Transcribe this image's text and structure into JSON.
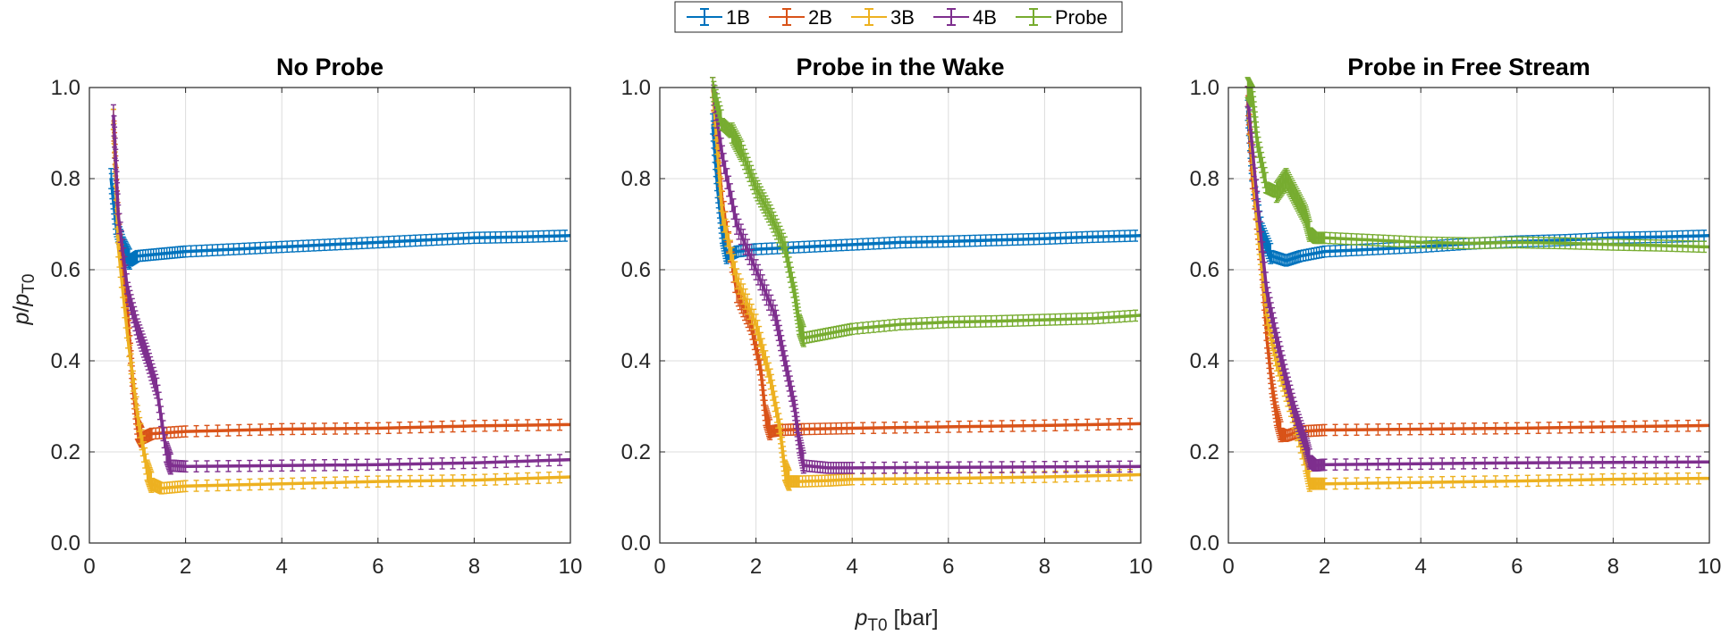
{
  "figure": {
    "legend": {
      "placement": "top-center",
      "entries": [
        {
          "label": "1B",
          "color": "#0072BD"
        },
        {
          "label": "2B",
          "color": "#D95319"
        },
        {
          "label": "3B",
          "color": "#EDB120"
        },
        {
          "label": "4B",
          "color": "#7E2F8E"
        },
        {
          "label": "Probe",
          "color": "#77AC30"
        }
      ]
    },
    "shared_xlabel_var": "p",
    "shared_xlabel_sub": "T0",
    "shared_xlabel_unit": " [bar]",
    "shared_ylabel_var_p": "p",
    "shared_ylabel_slash": "/",
    "shared_ylabel_var_p2": "p",
    "shared_ylabel_sub": "T0"
  },
  "chart_data": [
    {
      "type": "line",
      "title": "No Probe",
      "xlim": [
        0,
        10
      ],
      "ylim": [
        0,
        1
      ],
      "xticks": [
        "0",
        "2",
        "4",
        "6",
        "8",
        "10"
      ],
      "yticks": [
        "0.0",
        "0.2",
        "0.4",
        "0.6",
        "0.8",
        "1.0"
      ],
      "grid": true,
      "error_bars": true,
      "series": [
        {
          "name": "1B",
          "x": [
            0.45,
            0.55,
            0.7,
            0.85,
            1.0,
            1.5,
            2.0,
            3.0,
            4.0,
            5.0,
            6.0,
            7.0,
            8.0,
            9.0,
            10.0
          ],
          "y": [
            0.8,
            0.7,
            0.65,
            0.62,
            0.63,
            0.635,
            0.64,
            0.645,
            0.65,
            0.655,
            0.66,
            0.665,
            0.67,
            0.672,
            0.675
          ]
        },
        {
          "name": "2B",
          "x": [
            0.5,
            0.6,
            0.8,
            0.9,
            1.0,
            1.1,
            1.3,
            2.0,
            4.0,
            6.0,
            8.0,
            10.0
          ],
          "y": [
            0.93,
            0.7,
            0.5,
            0.35,
            0.25,
            0.23,
            0.24,
            0.245,
            0.25,
            0.252,
            0.257,
            0.26
          ]
        },
        {
          "name": "3B",
          "x": [
            0.5,
            0.6,
            0.8,
            1.0,
            1.2,
            1.3,
            1.5,
            2.0,
            4.0,
            6.0,
            8.0,
            10.0
          ],
          "y": [
            0.93,
            0.65,
            0.45,
            0.28,
            0.16,
            0.13,
            0.12,
            0.125,
            0.13,
            0.135,
            0.138,
            0.145
          ]
        },
        {
          "name": "4B",
          "x": [
            0.5,
            0.6,
            0.8,
            1.0,
            1.2,
            1.4,
            1.6,
            1.7,
            2.0,
            4.0,
            6.0,
            8.0,
            10.0
          ],
          "y": [
            0.94,
            0.72,
            0.55,
            0.47,
            0.41,
            0.34,
            0.2,
            0.17,
            0.168,
            0.17,
            0.172,
            0.176,
            0.183
          ]
        }
      ]
    },
    {
      "type": "line",
      "title": "Probe in the Wake",
      "xlim": [
        0,
        10
      ],
      "ylim": [
        0,
        1
      ],
      "xticks": [
        "0",
        "2",
        "4",
        "6",
        "8",
        "10"
      ],
      "yticks": [
        "0.0",
        "0.2",
        "0.4",
        "0.6",
        "0.8",
        "1.0"
      ],
      "grid": true,
      "error_bars": true,
      "series": [
        {
          "name": "1B",
          "x": [
            1.1,
            1.2,
            1.3,
            1.4,
            1.6,
            2.0,
            3.0,
            4.0,
            5.0,
            6.0,
            7.0,
            8.0,
            9.0,
            10.0
          ],
          "y": [
            0.92,
            0.78,
            0.68,
            0.63,
            0.64,
            0.645,
            0.65,
            0.655,
            0.66,
            0.662,
            0.665,
            0.668,
            0.672,
            0.675
          ]
        },
        {
          "name": "2B",
          "x": [
            1.1,
            1.3,
            1.6,
            1.9,
            2.1,
            2.2,
            2.3,
            2.5,
            3.0,
            4.0,
            6.0,
            8.0,
            10.0
          ],
          "y": [
            1.0,
            0.75,
            0.55,
            0.48,
            0.38,
            0.28,
            0.245,
            0.248,
            0.25,
            0.252,
            0.255,
            0.258,
            0.262
          ]
        },
        {
          "name": "3B",
          "x": [
            1.1,
            1.3,
            1.6,
            2.0,
            2.3,
            2.5,
            2.6,
            2.7,
            2.9,
            3.5,
            4.0,
            6.0,
            8.0,
            10.0
          ],
          "y": [
            1.0,
            0.72,
            0.58,
            0.48,
            0.36,
            0.25,
            0.16,
            0.135,
            0.135,
            0.137,
            0.14,
            0.142,
            0.145,
            0.15
          ]
        },
        {
          "name": "4B",
          "x": [
            1.1,
            1.3,
            1.6,
            2.0,
            2.4,
            2.6,
            2.8,
            2.9,
            3.0,
            3.5,
            4.0,
            6.0,
            8.0,
            10.0
          ],
          "y": [
            1.0,
            0.85,
            0.7,
            0.6,
            0.5,
            0.4,
            0.3,
            0.22,
            0.17,
            0.165,
            0.165,
            0.166,
            0.167,
            0.168
          ]
        },
        {
          "name": "Probe",
          "x": [
            1.1,
            1.3,
            1.5,
            1.7,
            2.0,
            2.3,
            2.6,
            2.8,
            2.9,
            3.0,
            3.5,
            4.0,
            5.0,
            6.0,
            7.0,
            8.0,
            9.0,
            10.0
          ],
          "y": [
            1.0,
            0.92,
            0.9,
            0.86,
            0.78,
            0.72,
            0.65,
            0.55,
            0.48,
            0.45,
            0.46,
            0.47,
            0.48,
            0.485,
            0.487,
            0.49,
            0.493,
            0.5
          ]
        }
      ]
    },
    {
      "type": "line",
      "title": "Probe in Free Stream",
      "xlim": [
        0,
        10
      ],
      "ylim": [
        0,
        1
      ],
      "xticks": [
        "0",
        "2",
        "4",
        "6",
        "8",
        "10"
      ],
      "yticks": [
        "0.0",
        "0.2",
        "0.4",
        "0.6",
        "0.8",
        "1.0"
      ],
      "grid": true,
      "error_bars": true,
      "series": [
        {
          "name": "1B",
          "x": [
            0.4,
            0.5,
            0.7,
            0.9,
            1.2,
            1.5,
            2.0,
            3.0,
            4.0,
            5.0,
            6.0,
            7.0,
            8.0,
            9.0,
            10.0
          ],
          "y": [
            0.95,
            0.8,
            0.68,
            0.63,
            0.62,
            0.63,
            0.64,
            0.645,
            0.65,
            0.657,
            0.662,
            0.665,
            0.67,
            0.672,
            0.675
          ]
        },
        {
          "name": "2B",
          "x": [
            0.4,
            0.5,
            0.7,
            0.8,
            0.9,
            1.0,
            1.1,
            1.2,
            1.5,
            2.0,
            4.0,
            6.0,
            8.0,
            10.0
          ],
          "y": [
            0.98,
            0.8,
            0.6,
            0.45,
            0.35,
            0.28,
            0.24,
            0.235,
            0.245,
            0.248,
            0.25,
            0.252,
            0.255,
            0.258
          ]
        },
        {
          "name": "3B",
          "x": [
            0.4,
            0.6,
            0.8,
            1.0,
            1.3,
            1.6,
            1.7,
            1.8,
            2.0,
            4.0,
            6.0,
            8.0,
            10.0
          ],
          "y": [
            0.98,
            0.7,
            0.5,
            0.4,
            0.3,
            0.18,
            0.13,
            0.13,
            0.13,
            0.133,
            0.136,
            0.14,
            0.142
          ]
        },
        {
          "name": "4B",
          "x": [
            0.4,
            0.6,
            0.8,
            1.0,
            1.2,
            1.4,
            1.6,
            1.7,
            1.8,
            2.0,
            4.0,
            6.0,
            8.0,
            10.0
          ],
          "y": [
            0.98,
            0.75,
            0.55,
            0.45,
            0.36,
            0.28,
            0.22,
            0.18,
            0.17,
            0.172,
            0.174,
            0.176,
            0.177,
            0.178
          ]
        },
        {
          "name": "Probe",
          "x": [
            0.4,
            0.5,
            0.6,
            0.8,
            1.0,
            1.2,
            1.4,
            1.6,
            1.7,
            1.8,
            2.0,
            3.0,
            4.0,
            5.0,
            6.0,
            7.0,
            8.0,
            9.0,
            10.0
          ],
          "y": [
            1.0,
            0.98,
            0.88,
            0.78,
            0.77,
            0.8,
            0.76,
            0.72,
            0.68,
            0.67,
            0.67,
            0.665,
            0.66,
            0.658,
            0.66,
            0.658,
            0.655,
            0.653,
            0.65
          ]
        }
      ]
    }
  ]
}
